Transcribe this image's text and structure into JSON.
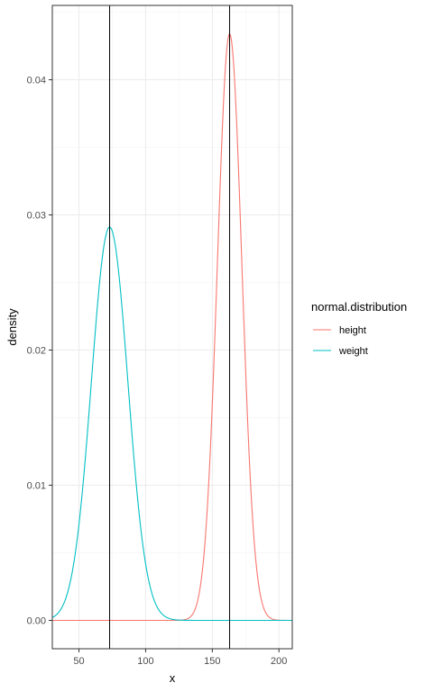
{
  "chart_data": {
    "type": "line",
    "xlabel": "x",
    "ylabel": "density",
    "xlim": [
      30,
      210
    ],
    "ylim": [
      -0.0021,
      0.0455
    ],
    "x_ticks": [
      50,
      100,
      150,
      200
    ],
    "y_ticks": [
      0.0,
      0.01,
      0.02,
      0.03,
      0.04
    ],
    "x_tick_labels": [
      "50",
      "100",
      "150",
      "200"
    ],
    "y_tick_labels": [
      "0.00",
      "0.01",
      "0.02",
      "0.03",
      "0.04"
    ],
    "grid": true,
    "legend": {
      "title": "normal.distribution",
      "placement": "right",
      "entries": [
        "height",
        "weight"
      ]
    },
    "vlines": [
      73,
      163
    ],
    "series": [
      {
        "name": "height",
        "color": "#F8766D",
        "mean": 163,
        "sd": 9.2,
        "x_range": [
          30,
          210
        ],
        "peak_density": 0.0434
      },
      {
        "name": "weight",
        "color": "#00BFC4",
        "mean": 73,
        "sd": 13.7,
        "x_range": [
          30,
          210
        ],
        "peak_density": 0.0291
      }
    ]
  }
}
